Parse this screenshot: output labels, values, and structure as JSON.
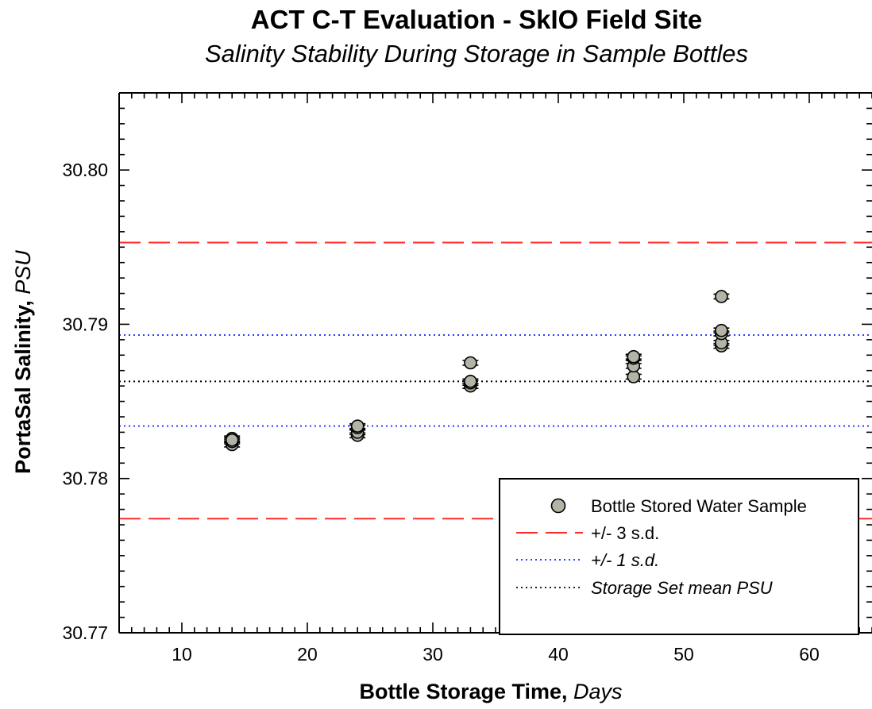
{
  "chart_data": {
    "type": "scatter",
    "title": "ACT C-T Evaluation - SkIO Field Site",
    "subtitle": "Salinity Stability During Storage in Sample Bottles",
    "xlabel": "Bottle Storage Time",
    "xlabel_unit": "Days",
    "ylabel": "PortaSal Salinity",
    "ylabel_unit": "PSU",
    "xlim": [
      5,
      65
    ],
    "ylim": [
      30.77,
      30.805
    ],
    "x_ticks": [
      10,
      20,
      30,
      40,
      50,
      60
    ],
    "y_ticks": [
      30.77,
      30.78,
      30.79,
      30.8
    ],
    "x_tick_labels": [
      "10",
      "20",
      "30",
      "40",
      "50",
      "60"
    ],
    "y_tick_labels": [
      "30.77",
      "30.78",
      "30.79",
      "30.80"
    ],
    "grid": false,
    "legend_position": "bottom-right",
    "series": [
      {
        "name": "Bottle Stored Water Sample",
        "kind": "points",
        "color": "#b3b3a6",
        "points": [
          {
            "x": 14,
            "y": 30.7822
          },
          {
            "x": 14,
            "y": 30.7824
          },
          {
            "x": 14,
            "y": 30.7826
          },
          {
            "x": 14,
            "y": 30.7825
          },
          {
            "x": 24,
            "y": 30.7828
          },
          {
            "x": 24,
            "y": 30.783
          },
          {
            "x": 24,
            "y": 30.7833
          },
          {
            "x": 24,
            "y": 30.7834
          },
          {
            "x": 33,
            "y": 30.786
          },
          {
            "x": 33,
            "y": 30.7862
          },
          {
            "x": 33,
            "y": 30.7863
          },
          {
            "x": 33,
            "y": 30.7875
          },
          {
            "x": 46,
            "y": 30.7866
          },
          {
            "x": 46,
            "y": 30.7873
          },
          {
            "x": 46,
            "y": 30.7878
          },
          {
            "x": 46,
            "y": 30.7879
          },
          {
            "x": 53,
            "y": 30.7886
          },
          {
            "x": 53,
            "y": 30.7888
          },
          {
            "x": 53,
            "y": 30.7894
          },
          {
            "x": 53,
            "y": 30.7896
          },
          {
            "x": 53,
            "y": 30.7918
          }
        ]
      },
      {
        "name": "+/- 3 s.d.",
        "kind": "hline",
        "style": "dashed",
        "color": "#ff2a2a",
        "values": [
          30.7953,
          30.7774
        ]
      },
      {
        "name": "+/- 1 s.d.",
        "kind": "hline",
        "style": "dotted",
        "color": "#2b3cff",
        "values": [
          30.7893,
          30.7834
        ]
      },
      {
        "name": "Storage Set mean PSU",
        "kind": "hline",
        "style": "dotted",
        "color": "#000000",
        "values": [
          30.7863
        ]
      }
    ]
  }
}
